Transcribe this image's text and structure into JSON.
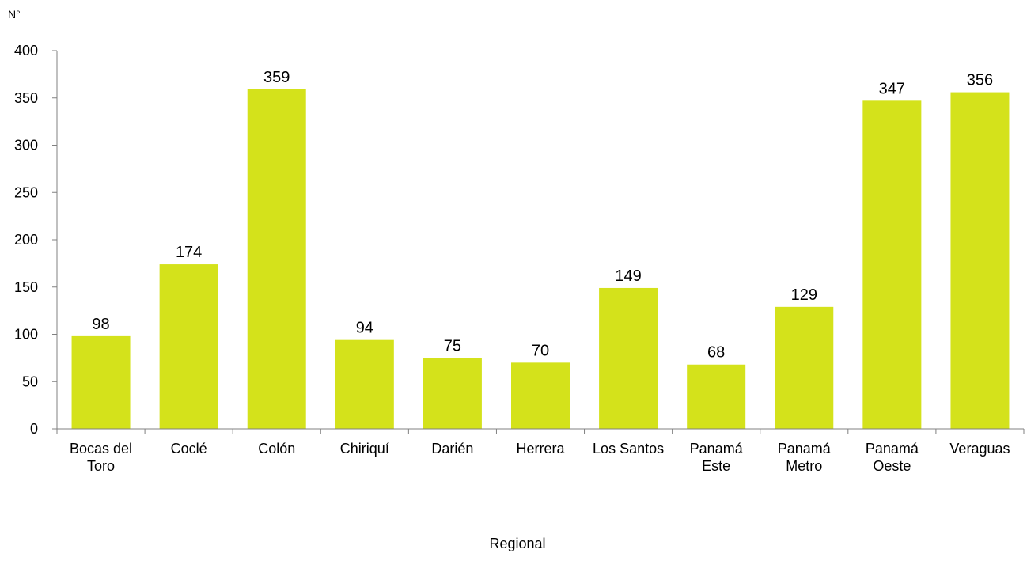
{
  "chart_data": {
    "type": "bar",
    "categories": [
      [
        "Bocas del",
        "Toro"
      ],
      [
        "Coclé"
      ],
      [
        "Colón"
      ],
      [
        "Chiriquí"
      ],
      [
        "Darién"
      ],
      [
        "Herrera"
      ],
      [
        "Los Santos"
      ],
      [
        "Panamá",
        "Este"
      ],
      [
        "Panamá",
        "Metro"
      ],
      [
        "Panamá",
        "Oeste"
      ],
      [
        "Veraguas"
      ]
    ],
    "values": [
      98,
      174,
      359,
      94,
      75,
      70,
      149,
      68,
      129,
      347,
      356
    ],
    "value_labels": [
      "98",
      "174",
      "359",
      "94",
      "75",
      "70",
      "149",
      "68",
      "129",
      "347",
      "356"
    ],
    "yticks": [
      "0",
      "50",
      "100",
      "150",
      "200",
      "250",
      "300",
      "350",
      "400"
    ],
    "ylim": [
      0,
      400
    ],
    "ylabel": "N°",
    "xlabel": "Regional",
    "grid": false,
    "legend": "none",
    "bar_color": "#d4e21b"
  }
}
